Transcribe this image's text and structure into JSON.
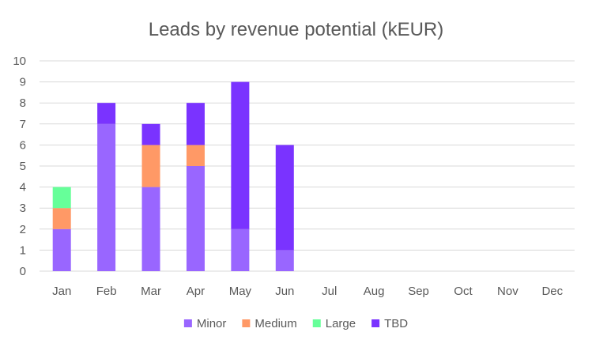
{
  "chart_data": {
    "type": "bar",
    "stacked": true,
    "title": "Leads by revenue potential (kEUR)",
    "xlabel": "",
    "ylabel": "",
    "categories": [
      "Jan",
      "Feb",
      "Mar",
      "Apr",
      "May",
      "Jun",
      "Jul",
      "Aug",
      "Sep",
      "Oct",
      "Nov",
      "Dec"
    ],
    "ylim": [
      0,
      10
    ],
    "yticks": [
      "0",
      "1",
      "2",
      "3",
      "4",
      "5",
      "6",
      "7",
      "8",
      "9",
      "10"
    ],
    "grid": true,
    "legend_position": "bottom",
    "series": [
      {
        "name": "Minor",
        "color": "#9966ff",
        "values": [
          2,
          7,
          4,
          5,
          2,
          1,
          0,
          0,
          0,
          0,
          0,
          0
        ]
      },
      {
        "name": "Medium",
        "color": "#ff9966",
        "values": [
          1,
          0,
          2,
          1,
          0,
          0,
          0,
          0,
          0,
          0,
          0,
          0
        ]
      },
      {
        "name": "Large",
        "color": "#66ff99",
        "values": [
          1,
          0,
          0,
          0,
          0,
          0,
          0,
          0,
          0,
          0,
          0,
          0
        ]
      },
      {
        "name": "TBD",
        "color": "#7a33ff",
        "values": [
          0,
          1,
          1,
          2,
          7,
          5,
          0,
          0,
          0,
          0,
          0,
          0
        ]
      }
    ]
  }
}
